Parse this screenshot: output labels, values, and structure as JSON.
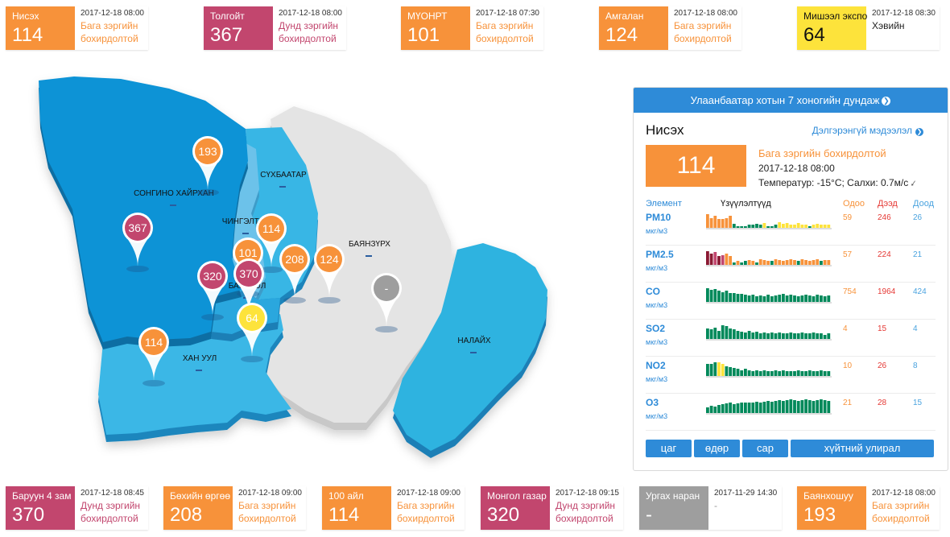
{
  "top_cards": [
    {
      "name": "Нисэх",
      "value": "114",
      "time": "2017-12-18 08:00",
      "status": "Бага зэргийн бохирдолтой",
      "color": "#f7923a",
      "status_color": "#f7923a",
      "text_color": "#ffffff"
    },
    {
      "name": "Толгойт",
      "value": "367",
      "time": "2017-12-18 08:00",
      "status": "Дунд зэргийн бохирдолтой",
      "color": "#c2466e",
      "status_color": "#c2466e",
      "text_color": "#ffffff"
    },
    {
      "name": "МҮОНРТ",
      "value": "101",
      "time": "2017-12-18 07:30",
      "status": "Бага зэргийн бохирдолтой",
      "color": "#f7923a",
      "status_color": "#f7923a",
      "text_color": "#ffffff"
    },
    {
      "name": "Амгалан",
      "value": "124",
      "time": "2017-12-18 08:00",
      "status": "Бага зэргийн бохирдолтой",
      "color": "#f7923a",
      "status_color": "#f7923a",
      "text_color": "#ffffff"
    },
    {
      "name": "Мишээл экспо",
      "value": "64",
      "time": "2017-12-18 08:30",
      "status": "Хэвийн",
      "color": "#fde33b",
      "status_color": "#222222",
      "text_color": "#111111"
    }
  ],
  "bottom_cards": [
    {
      "name": "Баруун 4 зам",
      "value": "370",
      "time": "2017-12-18 08:45",
      "status": "Дунд зэргийн бохирдолтой",
      "color": "#c2466e",
      "status_color": "#c2466e",
      "text_color": "#ffffff"
    },
    {
      "name": "Бөхийн өргөө",
      "value": "208",
      "time": "2017-12-18 09:00",
      "status": "Бага зэргийн бохирдолтой",
      "color": "#f7923a",
      "status_color": "#f7923a",
      "text_color": "#ffffff"
    },
    {
      "name": "100 айл",
      "value": "114",
      "time": "2017-12-18 09:00",
      "status": "Бага зэргийн бохирдолтой",
      "color": "#f7923a",
      "status_color": "#f7923a",
      "text_color": "#ffffff"
    },
    {
      "name": "Монгол газар",
      "value": "320",
      "time": "2017-12-18 09:15",
      "status": "Дунд зэргийн бохирдолтой",
      "color": "#c2466e",
      "status_color": "#c2466e",
      "text_color": "#ffffff"
    },
    {
      "name": "Ургах наран",
      "value": "-",
      "time": "2017-11-29 14:30",
      "status": "-",
      "color": "#9e9e9e",
      "status_color": "#999999",
      "text_color": "#ffffff"
    },
    {
      "name": "Баянхошуу",
      "value": "193",
      "time": "2017-12-18 08:00",
      "status": "Бага зэргийн бохирдолтой",
      "color": "#f7923a",
      "status_color": "#f7923a",
      "text_color": "#ffffff"
    }
  ],
  "map": {
    "districts": [
      {
        "name": "СОНГИНО ХАЙРХАН"
      },
      {
        "name": "СҮХБААТАР"
      },
      {
        "name": "ЧИНГЭЛТЭЙ"
      },
      {
        "name": "БАЯНЗҮРХ"
      },
      {
        "name": "БАЯНГОЛ"
      },
      {
        "name": "ХАН УУЛ"
      },
      {
        "name": "НАЛАЙХ"
      }
    ],
    "markers": [
      {
        "value": "193",
        "color": "#f7923a",
        "text_color": "#ffffff"
      },
      {
        "value": "367",
        "color": "#c2466e",
        "text_color": "#ffffff"
      },
      {
        "value": "114",
        "color": "#f7923a",
        "text_color": "#ffffff"
      },
      {
        "value": "101",
        "color": "#f7923a",
        "text_color": "#ffffff"
      },
      {
        "value": "370",
        "color": "#c2466e",
        "text_color": "#ffffff"
      },
      {
        "value": "320",
        "color": "#c2466e",
        "text_color": "#ffffff"
      },
      {
        "value": "208",
        "color": "#f7923a",
        "text_color": "#ffffff"
      },
      {
        "value": "124",
        "color": "#f7923a",
        "text_color": "#ffffff"
      },
      {
        "value": "-",
        "color": "#9e9e9e",
        "text_color": "#ffffff"
      },
      {
        "value": "64",
        "color": "#fde33b",
        "text_color": "#ffffff"
      },
      {
        "value": "114",
        "color": "#f7923a",
        "text_color": "#ffffff"
      }
    ]
  },
  "panel": {
    "header": "Улаанбаатар хотын 7 хоногийн дундаж",
    "station": "Нисэх",
    "detail_link": "Дэлгэрэнгүй мэдээлэл",
    "aqi": "114",
    "aqi_color": "#f7923a",
    "status": "Бага зэргийн бохирдолтой",
    "time": "2017-12-18 08:00",
    "weather": "Температур: -15°C; Салхи: 0.7м/с",
    "wind_icon": "wind-arrow-icon",
    "columns": {
      "element": "Элемент",
      "indicators": "Үзүүлэлтүүд",
      "current": "Одоо",
      "high": "Дээд",
      "low": "Доод"
    },
    "rows": [
      {
        "name": "PM10",
        "unit": "мкг/м3",
        "current": "59",
        "high": "246",
        "low": "26",
        "bars": [
          14,
          10,
          12,
          9,
          9,
          10,
          12,
          4,
          2,
          2,
          2,
          3,
          3,
          4,
          3,
          5,
          2,
          2,
          3,
          6,
          4,
          5,
          3,
          3,
          5,
          3,
          3,
          2,
          3,
          4,
          3,
          3,
          3
        ],
        "colors": [
          "#f7923a",
          "#f7923a",
          "#f7923a",
          "#f7923a",
          "#f7923a",
          "#f7923a",
          "#f7923a",
          "#00895a",
          "#00895a",
          "#00895a",
          "#00895a",
          "#00895a",
          "#00895a",
          "#00895a",
          "#00895a",
          "#fde33b",
          "#00895a",
          "#00895a",
          "#00895a",
          "#fde33b",
          "#fde33b",
          "#fde33b",
          "#fde33b",
          "#fde33b",
          "#fde33b",
          "#fde33b",
          "#fde33b",
          "#00895a",
          "#fde33b",
          "#fde33b",
          "#fde33b",
          "#fde33b",
          "#fde33b"
        ]
      },
      {
        "name": "PM2.5",
        "unit": "мкг/м3",
        "current": "57",
        "high": "224",
        "low": "21",
        "bars": [
          15,
          12,
          14,
          10,
          11,
          12,
          10,
          3,
          4,
          3,
          4,
          5,
          4,
          3,
          6,
          5,
          4,
          4,
          6,
          5,
          4,
          5,
          6,
          5,
          4,
          6,
          5,
          4,
          5,
          6,
          4,
          5,
          5
        ],
        "colors": [
          "#8b1a33",
          "#8b1a33",
          "#c2466e",
          "#8b1a33",
          "#c2466e",
          "#f7923a",
          "#f7923a",
          "#00895a",
          "#f7923a",
          "#00895a",
          "#00895a",
          "#f7923a",
          "#f7923a",
          "#00895a",
          "#f7923a",
          "#f7923a",
          "#f7923a",
          "#00895a",
          "#f7923a",
          "#f7923a",
          "#f7923a",
          "#f7923a",
          "#f7923a",
          "#f7923a",
          "#00895a",
          "#f7923a",
          "#f7923a",
          "#f7923a",
          "#f7923a",
          "#f7923a",
          "#00895a",
          "#f7923a",
          "#f7923a"
        ]
      },
      {
        "name": "CO",
        "unit": "мкг/м3",
        "current": "754",
        "high": "1964",
        "low": "424",
        "bars": [
          15,
          13,
          14,
          12,
          11,
          12,
          10,
          10,
          9,
          9,
          8,
          7,
          8,
          6,
          7,
          6,
          8,
          6,
          7,
          8,
          9,
          7,
          8,
          7,
          6,
          7,
          8,
          7,
          6,
          8,
          7,
          6,
          7
        ],
        "colors": [
          "#00895a"
        ]
      },
      {
        "name": "SO2",
        "unit": "мкг/м3",
        "current": "4",
        "high": "15",
        "low": "4",
        "bars": [
          10,
          9,
          11,
          8,
          13,
          12,
          10,
          9,
          8,
          7,
          6,
          8,
          6,
          7,
          5,
          6,
          5,
          6,
          5,
          6,
          5,
          5,
          6,
          5,
          5,
          6,
          5,
          5,
          6,
          5,
          5,
          4,
          5
        ],
        "colors": [
          "#00895a"
        ]
      },
      {
        "name": "NO2",
        "unit": "мкг/м3",
        "current": "10",
        "high": "26",
        "low": "8",
        "bars": [
          12,
          12,
          14,
          14,
          12,
          10,
          9,
          8,
          7,
          6,
          7,
          6,
          5,
          6,
          5,
          6,
          5,
          5,
          6,
          5,
          6,
          5,
          5,
          5,
          6,
          5,
          5,
          6,
          5,
          5,
          6,
          5,
          5
        ],
        "colors": [
          "#00895a",
          "#00895a",
          "#00895a",
          "#fde33b",
          "#fde33b",
          "#00895a",
          "#00895a",
          "#00895a",
          "#00895a",
          "#00895a",
          "#00895a",
          "#00895a",
          "#00895a",
          "#00895a",
          "#00895a",
          "#00895a",
          "#00895a",
          "#00895a",
          "#00895a",
          "#00895a",
          "#00895a",
          "#00895a",
          "#00895a",
          "#00895a",
          "#00895a",
          "#00895a",
          "#00895a",
          "#00895a",
          "#00895a",
          "#00895a",
          "#00895a",
          "#00895a",
          "#00895a"
        ]
      },
      {
        "name": "O3",
        "unit": "мкг/м3",
        "current": "21",
        "high": "28",
        "low": "15",
        "bars": [
          8,
          10,
          9,
          11,
          12,
          13,
          14,
          12,
          13,
          14,
          15,
          14,
          15,
          16,
          15,
          16,
          17,
          16,
          17,
          18,
          17,
          18,
          19,
          18,
          17,
          18,
          19,
          18,
          17,
          18,
          19,
          18,
          17
        ],
        "colors": [
          "#00895a"
        ]
      }
    ],
    "tabs": [
      "цаг",
      "өдөр",
      "сар",
      "хүйтний улирал"
    ]
  }
}
